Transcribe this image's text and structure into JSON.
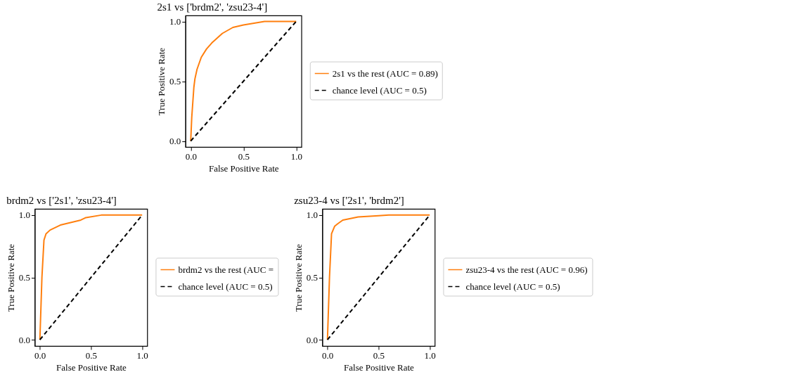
{
  "chart_data": [
    {
      "type": "line",
      "title": "2s1 vs ['brdm2', 'zsu23-4']",
      "xlabel": "False Positive Rate",
      "ylabel": "True Positive Rate",
      "xlim": [
        -0.05,
        1.05
      ],
      "ylim": [
        -0.05,
        1.05
      ],
      "xticks": [
        {
          "value": 0,
          "label": "0.0"
        },
        {
          "value": 0.5,
          "label": "0.5"
        },
        {
          "value": 1,
          "label": "1.0"
        }
      ],
      "yticks": [
        {
          "value": 0,
          "label": "0.0"
        },
        {
          "value": 0.5,
          "label": "0.5"
        },
        {
          "value": 1,
          "label": "1.0"
        }
      ],
      "grid": false,
      "legend": "right",
      "series": [
        {
          "name": "2s1 vs the rest (AUC = 0.89)",
          "color": "#ff7f0e",
          "line_style": "solid",
          "x": [
            0,
            0.01,
            0.03,
            0.04,
            0.06,
            0.1,
            0.15,
            0.2,
            0.3,
            0.4,
            0.5,
            0.6,
            0.7,
            1
          ],
          "values": [
            0,
            0.2,
            0.45,
            0.52,
            0.6,
            0.7,
            0.77,
            0.82,
            0.9,
            0.95,
            0.97,
            0.985,
            1,
            1
          ]
        },
        {
          "name": "chance level (AUC = 0.5)",
          "color": "#000000",
          "line_style": "dashed",
          "x": [
            0,
            1
          ],
          "values": [
            0,
            1
          ]
        }
      ]
    },
    {
      "type": "line",
      "title": "brdm2 vs ['2s1', 'zsu23-4']",
      "xlabel": "False Positive Rate",
      "ylabel": "True Positive Rate",
      "xlim": [
        -0.05,
        1.05
      ],
      "ylim": [
        -0.05,
        1.05
      ],
      "xticks": [
        {
          "value": 0,
          "label": "0.0"
        },
        {
          "value": 0.5,
          "label": "0.5"
        },
        {
          "value": 1,
          "label": "1.0"
        }
      ],
      "yticks": [
        {
          "value": 0,
          "label": "0.0"
        },
        {
          "value": 0.5,
          "label": "0.5"
        },
        {
          "value": 1,
          "label": "1.0"
        }
      ],
      "grid": false,
      "legend": "right",
      "series": [
        {
          "name": "brdm2 vs the rest (AUC =",
          "color": "#ff7f0e",
          "line_style": "solid",
          "x": [
            0,
            0.02,
            0.04,
            0.06,
            0.1,
            0.2,
            0.3,
            0.4,
            0.45,
            0.6,
            1
          ],
          "values": [
            0,
            0.5,
            0.8,
            0.85,
            0.88,
            0.92,
            0.94,
            0.96,
            0.98,
            1,
            1
          ]
        },
        {
          "name": "chance level (AUC = 0.5)",
          "color": "#000000",
          "line_style": "dashed",
          "x": [
            0,
            1
          ],
          "values": [
            0,
            1
          ]
        }
      ]
    },
    {
      "type": "line",
      "title": "zsu23-4 vs ['2s1', 'brdm2']",
      "xlabel": "False Positive Rate",
      "ylabel": "True Positive Rate",
      "xlim": [
        -0.05,
        1.05
      ],
      "ylim": [
        -0.05,
        1.05
      ],
      "xticks": [
        {
          "value": 0,
          "label": "0.0"
        },
        {
          "value": 0.5,
          "label": "0.5"
        },
        {
          "value": 1,
          "label": "1.0"
        }
      ],
      "yticks": [
        {
          "value": 0,
          "label": "0.0"
        },
        {
          "value": 0.5,
          "label": "0.5"
        },
        {
          "value": 1,
          "label": "1.0"
        }
      ],
      "grid": false,
      "legend": "right",
      "series": [
        {
          "name": "zsu23-4 vs the rest (AUC = 0.96)",
          "color": "#ff7f0e",
          "line_style": "solid",
          "x": [
            0,
            0.02,
            0.04,
            0.07,
            0.1,
            0.15,
            0.3,
            0.5,
            0.6,
            1
          ],
          "values": [
            0,
            0.5,
            0.85,
            0.91,
            0.93,
            0.96,
            0.985,
            0.995,
            1,
            1
          ]
        },
        {
          "name": "chance level (AUC = 0.5)",
          "color": "#000000",
          "line_style": "dashed",
          "x": [
            0,
            1
          ],
          "values": [
            0,
            1
          ]
        }
      ]
    }
  ]
}
